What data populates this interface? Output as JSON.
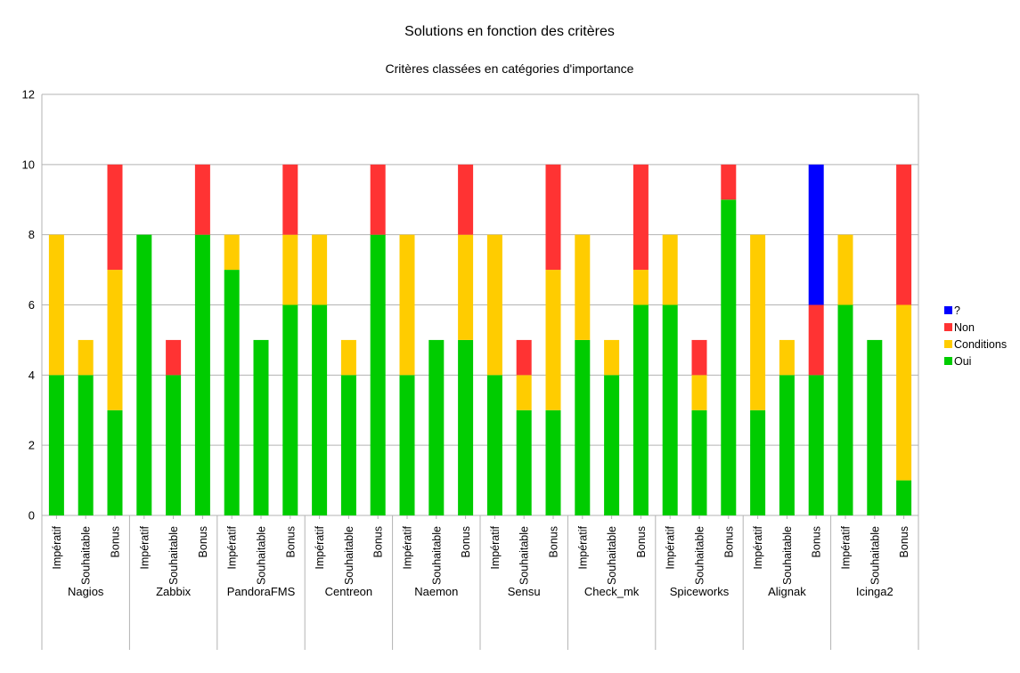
{
  "chart_data": {
    "type": "bar",
    "stacked": true,
    "title": "Solutions en fonction des critères",
    "subtitle": "Critères classées en catégories d'importance",
    "xlabel": "",
    "ylabel": "",
    "ylim": [
      0,
      12
    ],
    "yticks": [
      0,
      2,
      4,
      6,
      8,
      10,
      12
    ],
    "grid": true,
    "legend_position": "right",
    "groups": [
      {
        "name": "Nagios",
        "categories": [
          "Impératif",
          "Souhaitable",
          "Bonus"
        ]
      },
      {
        "name": "Zabbix",
        "categories": [
          "Impératif",
          "Souhaitable",
          "Bonus"
        ]
      },
      {
        "name": "PandoraFMS",
        "categories": [
          "Impératif",
          "Souhaitable",
          "Bonus"
        ]
      },
      {
        "name": "Centreon",
        "categories": [
          "Impératif",
          "Souhaitable",
          "Bonus"
        ]
      },
      {
        "name": "Naemon",
        "categories": [
          "Impératif",
          "Souhaitable",
          "Bonus"
        ]
      },
      {
        "name": "Sensu",
        "categories": [
          "Impératif",
          "Souhaitable",
          "Bonus"
        ]
      },
      {
        "name": "Check_mk",
        "categories": [
          "Impératif",
          "Souhaitable",
          "Bonus"
        ]
      },
      {
        "name": "Spiceworks",
        "categories": [
          "Impératif",
          "Souhaitable",
          "Bonus"
        ]
      },
      {
        "name": "Alignak",
        "categories": [
          "Impératif",
          "Souhaitable",
          "Bonus"
        ]
      },
      {
        "name": "Icinga2",
        "categories": [
          "Impératif",
          "Souhaitable",
          "Bonus"
        ]
      }
    ],
    "series": [
      {
        "name": "Oui",
        "color": "#00cc00",
        "values": [
          4,
          4,
          3,
          8,
          4,
          8,
          7,
          5,
          6,
          6,
          4,
          8,
          4,
          5,
          5,
          4,
          3,
          3,
          5,
          4,
          6,
          6,
          3,
          9,
          3,
          4,
          4,
          6,
          5,
          1
        ]
      },
      {
        "name": "Conditions",
        "color": "#ffcc00",
        "values": [
          4,
          1,
          4,
          0,
          0,
          0,
          1,
          0,
          2,
          2,
          1,
          0,
          4,
          0,
          3,
          4,
          1,
          4,
          3,
          1,
          1,
          2,
          1,
          0,
          5,
          1,
          0,
          2,
          0,
          5
        ]
      },
      {
        "name": "Non",
        "color": "#ff3333",
        "values": [
          0,
          0,
          3,
          0,
          1,
          2,
          0,
          0,
          2,
          0,
          0,
          2,
          0,
          0,
          2,
          0,
          1,
          3,
          0,
          0,
          3,
          0,
          1,
          1,
          0,
          0,
          2,
          0,
          0,
          4
        ]
      },
      {
        "name": "?",
        "color": "#0000ff",
        "values": [
          0,
          0,
          0,
          0,
          0,
          0,
          0,
          0,
          0,
          0,
          0,
          0,
          0,
          0,
          0,
          0,
          0,
          0,
          0,
          0,
          0,
          0,
          0,
          0,
          0,
          0,
          4,
          0,
          0,
          0
        ]
      }
    ]
  }
}
